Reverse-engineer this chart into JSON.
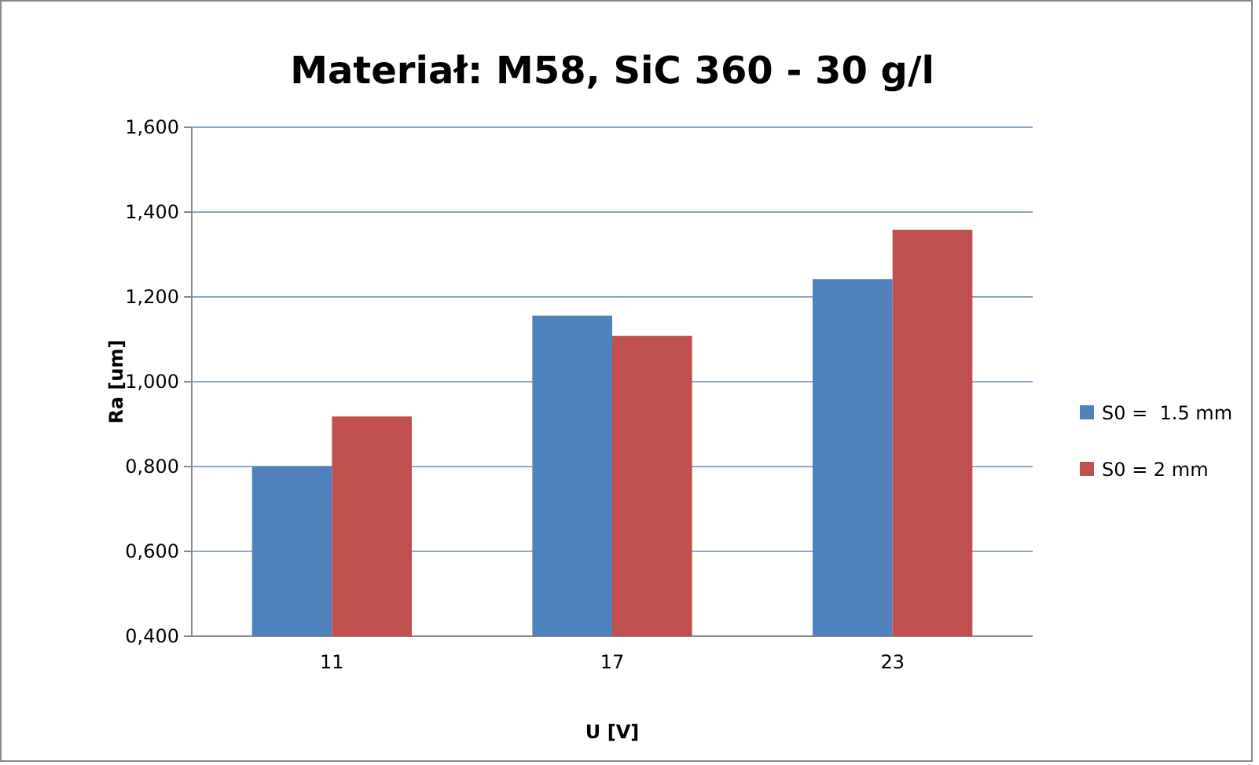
{
  "chart_data": {
    "type": "bar",
    "title": "Materiał: M58, SiC 360 - 30 g/l",
    "xlabel": "U [V]",
    "ylabel": "Ra [um]",
    "categories": [
      "11",
      "17",
      "23"
    ],
    "series": [
      {
        "name": "S0 =  1.5 mm",
        "color": "#4f81bd",
        "values": [
          0.8,
          1.156,
          1.242
        ]
      },
      {
        "name": "S0 = 2 mm",
        "color": "#c0504d",
        "values": [
          0.918,
          1.108,
          1.358
        ]
      }
    ],
    "ylim": [
      0.4,
      1.6
    ],
    "yticks": [
      {
        "value": 0.4,
        "label": "0,400"
      },
      {
        "value": 0.6,
        "label": "0,600"
      },
      {
        "value": 0.8,
        "label": "0,800"
      },
      {
        "value": 1.0,
        "label": "1,000"
      },
      {
        "value": 1.2,
        "label": "1,200"
      },
      {
        "value": 1.4,
        "label": "1,400"
      },
      {
        "value": 1.6,
        "label": "1,600"
      }
    ],
    "grid": "y",
    "legend": "right"
  }
}
